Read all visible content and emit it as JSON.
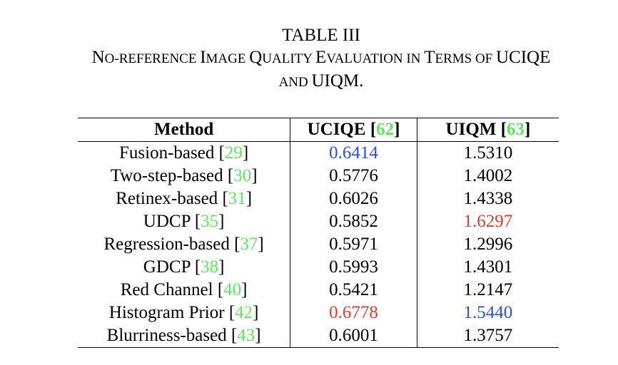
{
  "caption": {
    "label": "TABLE III",
    "title_parts": [
      {
        "big": "N",
        "small": "O-REFERENCE "
      },
      {
        "big": "I",
        "small": "MAGE "
      },
      {
        "big": "Q",
        "small": "UALITY "
      },
      {
        "big": "E",
        "small": "VALUATION IN "
      },
      {
        "big": "T",
        "small": "ERMS OF "
      },
      {
        "big": "UCIQE",
        "small": ""
      }
    ],
    "line3_parts": [
      {
        "big": "",
        "small": "AND "
      },
      {
        "big": "UIQM.",
        "small": ""
      }
    ]
  },
  "colors": {
    "citation": "#5ee85e",
    "best": "#e53a2e",
    "second_best": "#2b4fe0"
  },
  "table": {
    "headers": [
      {
        "text": "Method",
        "cite": ""
      },
      {
        "text": "UCIQE ",
        "cite": "62"
      },
      {
        "text": "UIQM ",
        "cite": "63"
      }
    ],
    "rows": [
      {
        "method": "Fusion-based ",
        "cite": "29",
        "uciqe": "0.6414",
        "uciqe_rank": "second",
        "uiqm": "1.5310",
        "uiqm_rank": ""
      },
      {
        "method": "Two-step-based ",
        "cite": "30",
        "uciqe": "0.5776",
        "uciqe_rank": "",
        "uiqm": "1.4002",
        "uiqm_rank": ""
      },
      {
        "method": "Retinex-based ",
        "cite": "31",
        "uciqe": "0.6026",
        "uciqe_rank": "",
        "uiqm": "1.4338",
        "uiqm_rank": ""
      },
      {
        "method": "UDCP ",
        "cite": "35",
        "uciqe": "0.5852",
        "uciqe_rank": "",
        "uiqm": "1.6297",
        "uiqm_rank": "best"
      },
      {
        "method": "Regression-based ",
        "cite": "37",
        "uciqe": "0.5971",
        "uciqe_rank": "",
        "uiqm": "1.2996",
        "uiqm_rank": ""
      },
      {
        "method": "GDCP ",
        "cite": "38",
        "uciqe": "0.5993",
        "uciqe_rank": "",
        "uiqm": "1.4301",
        "uiqm_rank": ""
      },
      {
        "method": "Red Channel ",
        "cite": "40",
        "uciqe": "0.5421",
        "uciqe_rank": "",
        "uiqm": "1.2147",
        "uiqm_rank": ""
      },
      {
        "method": "Histogram Prior ",
        "cite": "42",
        "uciqe": "0.6778",
        "uciqe_rank": "best",
        "uiqm": "1.5440",
        "uiqm_rank": "second"
      },
      {
        "method": "Blurriness-based ",
        "cite": "43",
        "uciqe": "0.6001",
        "uciqe_rank": "",
        "uiqm": "1.3757",
        "uiqm_rank": ""
      }
    ]
  }
}
